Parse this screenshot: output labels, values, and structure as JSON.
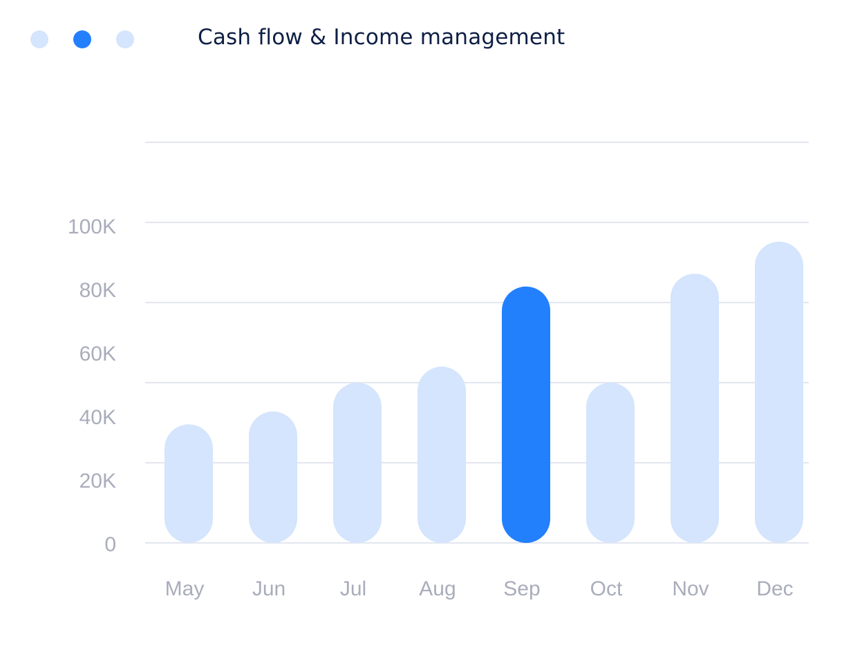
{
  "header": {
    "title": "Cash flow & Income management",
    "pager_dots": [
      {
        "active": false,
        "color": "#d4e5fd"
      },
      {
        "active": true,
        "color": "#2380fd"
      },
      {
        "active": false,
        "color": "#d4e5fd"
      }
    ]
  },
  "colors": {
    "bar_default": "#d4e5fd",
    "bar_highlight": "#2380fd",
    "gridline": "#e3e6f0",
    "axis_text": "#a9adbb",
    "title_text": "#0e1f45"
  },
  "chart_data": {
    "type": "bar",
    "categories": [
      "May",
      "Jun",
      "Jul",
      "Aug",
      "Sep",
      "Oct",
      "Nov",
      "Dec"
    ],
    "values": [
      37000,
      41000,
      50000,
      55000,
      80000,
      50000,
      84000,
      94000
    ],
    "highlighted_category": "Sep",
    "ylim": [
      0,
      125000
    ],
    "yticks": [
      0,
      20000,
      40000,
      60000,
      80000,
      100000
    ],
    "ytick_labels": [
      "0",
      "20K",
      "40K",
      "60K",
      "80K",
      "100K"
    ],
    "gridlines": [
      0,
      25000,
      50000,
      75000,
      100000,
      125000
    ],
    "grid": true,
    "legend": "none",
    "title": "Cash flow & Income management",
    "xlabel": "",
    "ylabel": ""
  }
}
